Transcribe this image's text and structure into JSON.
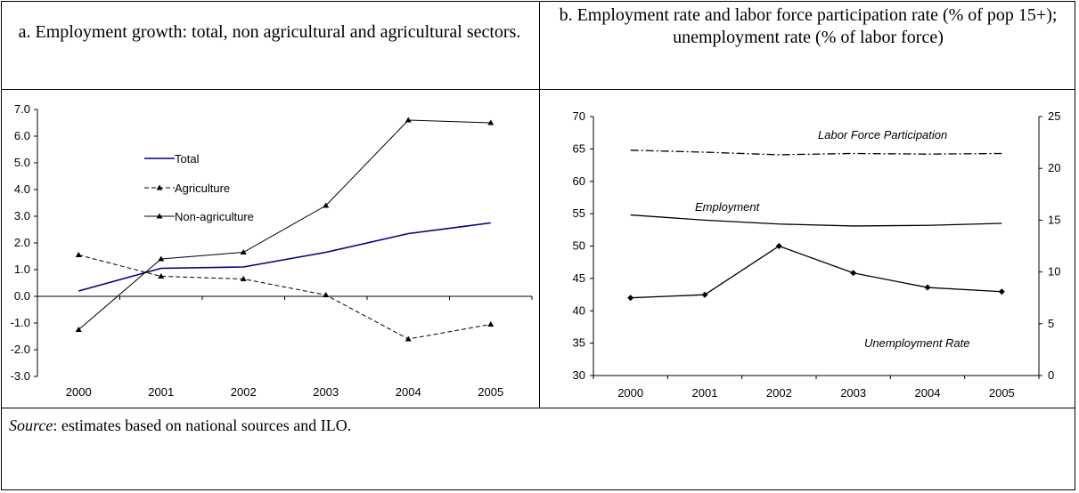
{
  "panel_a": {
    "title": "a. Employment growth: total, non agricultural and agricultural sectors."
  },
  "panel_b": {
    "title": "b. Employment rate and labor force participation rate (% of pop 15+); unemployment rate (% of labor force)"
  },
  "source": {
    "label": "Source",
    "text": ": estimates based on national sources and ILO."
  },
  "chart_data": [
    {
      "type": "line",
      "title": "a. Employment growth: total, non agricultural and agricultural sectors.",
      "x": [
        "2000",
        "2001",
        "2002",
        "2003",
        "2004",
        "2005"
      ],
      "ylim": [
        -3.0,
        7.0
      ],
      "yticks": [
        -3.0,
        -2.0,
        -1.0,
        0.0,
        1.0,
        2.0,
        3.0,
        4.0,
        5.0,
        6.0,
        7.0
      ],
      "grid": false,
      "legend": "upper-left",
      "series": [
        {
          "name": "Total",
          "values": [
            0.2,
            1.05,
            1.1,
            1.65,
            2.35,
            2.75
          ],
          "color": "#000080",
          "style": "solid",
          "marker": "none"
        },
        {
          "name": "Agriculture",
          "values": [
            1.55,
            0.75,
            0.65,
            0.05,
            -1.6,
            -1.05
          ],
          "color": "#000000",
          "style": "dashed",
          "marker": "triangle"
        },
        {
          "name": "Non-agriculture",
          "values": [
            -1.25,
            1.4,
            1.65,
            3.4,
            6.6,
            6.5
          ],
          "color": "#000000",
          "style": "solid",
          "marker": "triangle"
        }
      ]
    },
    {
      "type": "line",
      "title": "b. Employment rate and labor force participation rate (% of pop 15+); unemployment rate (% of labor force)",
      "x": [
        "2000",
        "2001",
        "2002",
        "2003",
        "2004",
        "2005"
      ],
      "ylim": [
        30,
        70
      ],
      "yticks": [
        30,
        35,
        40,
        45,
        50,
        55,
        60,
        65,
        70
      ],
      "y2lim": [
        0,
        25
      ],
      "y2ticks": [
        0,
        5,
        10,
        15,
        20,
        25
      ],
      "grid": false,
      "series": [
        {
          "name": "Labor Force Participation",
          "axis": "left",
          "values": [
            64.8,
            64.5,
            64.1,
            64.3,
            64.2,
            64.3
          ],
          "style": "dashdot",
          "marker": "none"
        },
        {
          "name": "Employment Rate",
          "label_visible": "Employment",
          "axis": "left",
          "values": [
            54.8,
            54.0,
            53.4,
            53.1,
            53.2,
            53.5
          ],
          "style": "solid",
          "marker": "none"
        },
        {
          "name": "Unemployment Rate",
          "axis": "right",
          "values": [
            7.5,
            7.8,
            12.5,
            9.9,
            8.5,
            8.1
          ],
          "style": "solid",
          "marker": "diamond"
        }
      ]
    }
  ]
}
